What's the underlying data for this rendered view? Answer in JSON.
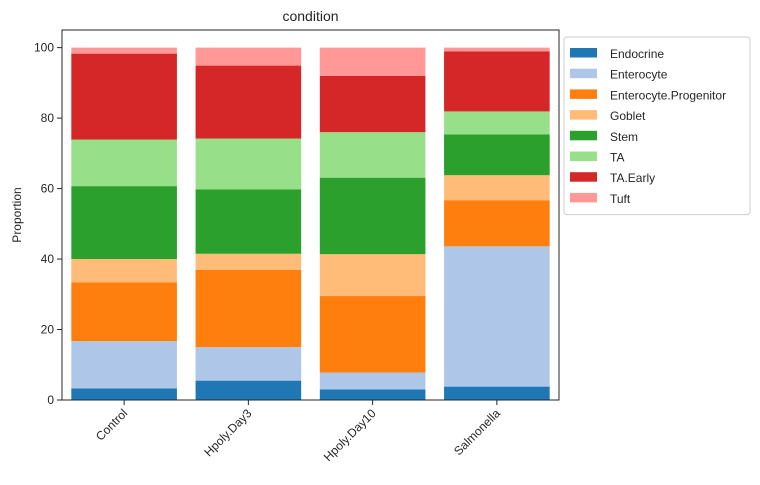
{
  "chart_data": {
    "type": "bar",
    "stacked": true,
    "title": "condition",
    "xlabel": "",
    "ylabel": "Proportion",
    "ylim": [
      0,
      105
    ],
    "yticks": [
      0,
      20,
      40,
      60,
      80,
      100
    ],
    "grid": false,
    "legend_position": "outside-top-right",
    "categories": [
      "Control",
      "Hpoly.Day3",
      "Hpoly.Day10",
      "Salmonella"
    ],
    "series": [
      {
        "name": "Endocrine",
        "color": "#1f77b4",
        "values": [
          3.3,
          5.5,
          3.0,
          3.8
        ]
      },
      {
        "name": "Enterocyte",
        "color": "#aec7e8",
        "values": [
          13.4,
          9.5,
          4.8,
          39.8
        ]
      },
      {
        "name": "Enterocyte.Progenitor",
        "color": "#ff7f0e",
        "values": [
          16.7,
          21.9,
          21.7,
          13.1
        ]
      },
      {
        "name": "Goblet",
        "color": "#ffbb78",
        "values": [
          6.6,
          4.6,
          11.9,
          7.1
        ]
      },
      {
        "name": "Stem",
        "color": "#2ca02c",
        "values": [
          20.7,
          18.3,
          21.7,
          11.6
        ]
      },
      {
        "name": "TA",
        "color": "#98df8a",
        "values": [
          13.2,
          14.4,
          12.9,
          6.5
        ]
      },
      {
        "name": "TA.Early",
        "color": "#d62728",
        "values": [
          24.4,
          20.7,
          16.0,
          17.0
        ]
      },
      {
        "name": "Tuft",
        "color": "#ff9896",
        "values": [
          1.7,
          5.1,
          8.0,
          1.1
        ]
      }
    ]
  }
}
